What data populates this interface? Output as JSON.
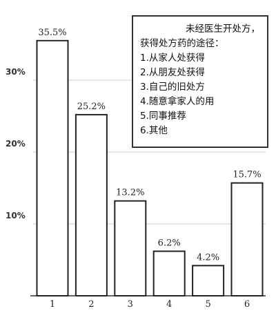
{
  "chart_data": {
    "type": "bar",
    "categories": [
      "1",
      "2",
      "3",
      "4",
      "5",
      "6"
    ],
    "values": [
      35.5,
      25.2,
      13.2,
      6.2,
      4.2,
      15.7
    ],
    "value_labels": [
      "35.5%",
      "25.2%",
      "13.2%",
      "6.2%",
      "4.2%",
      "15.7%"
    ],
    "yticks": [
      {
        "value": 10,
        "label": "10%"
      },
      {
        "value": 20,
        "label": "20%"
      },
      {
        "value": 30,
        "label": "30%"
      }
    ],
    "ylim": [
      0,
      40
    ],
    "grid": true,
    "legend_position": "top-right",
    "colors": {
      "bar_fill": "#ffffff",
      "bar_stroke": "#222222",
      "grid": "#cfcfcf"
    }
  },
  "legend": {
    "title_line1": "未经医生开处方，",
    "title_line2": "获得处方药的途径：",
    "items": [
      "1.从家人处获得",
      "2.从朋友处获得",
      "3.自己的旧处方",
      "4.随意拿家人的用",
      "5.同事推荐",
      "6.其他"
    ]
  }
}
